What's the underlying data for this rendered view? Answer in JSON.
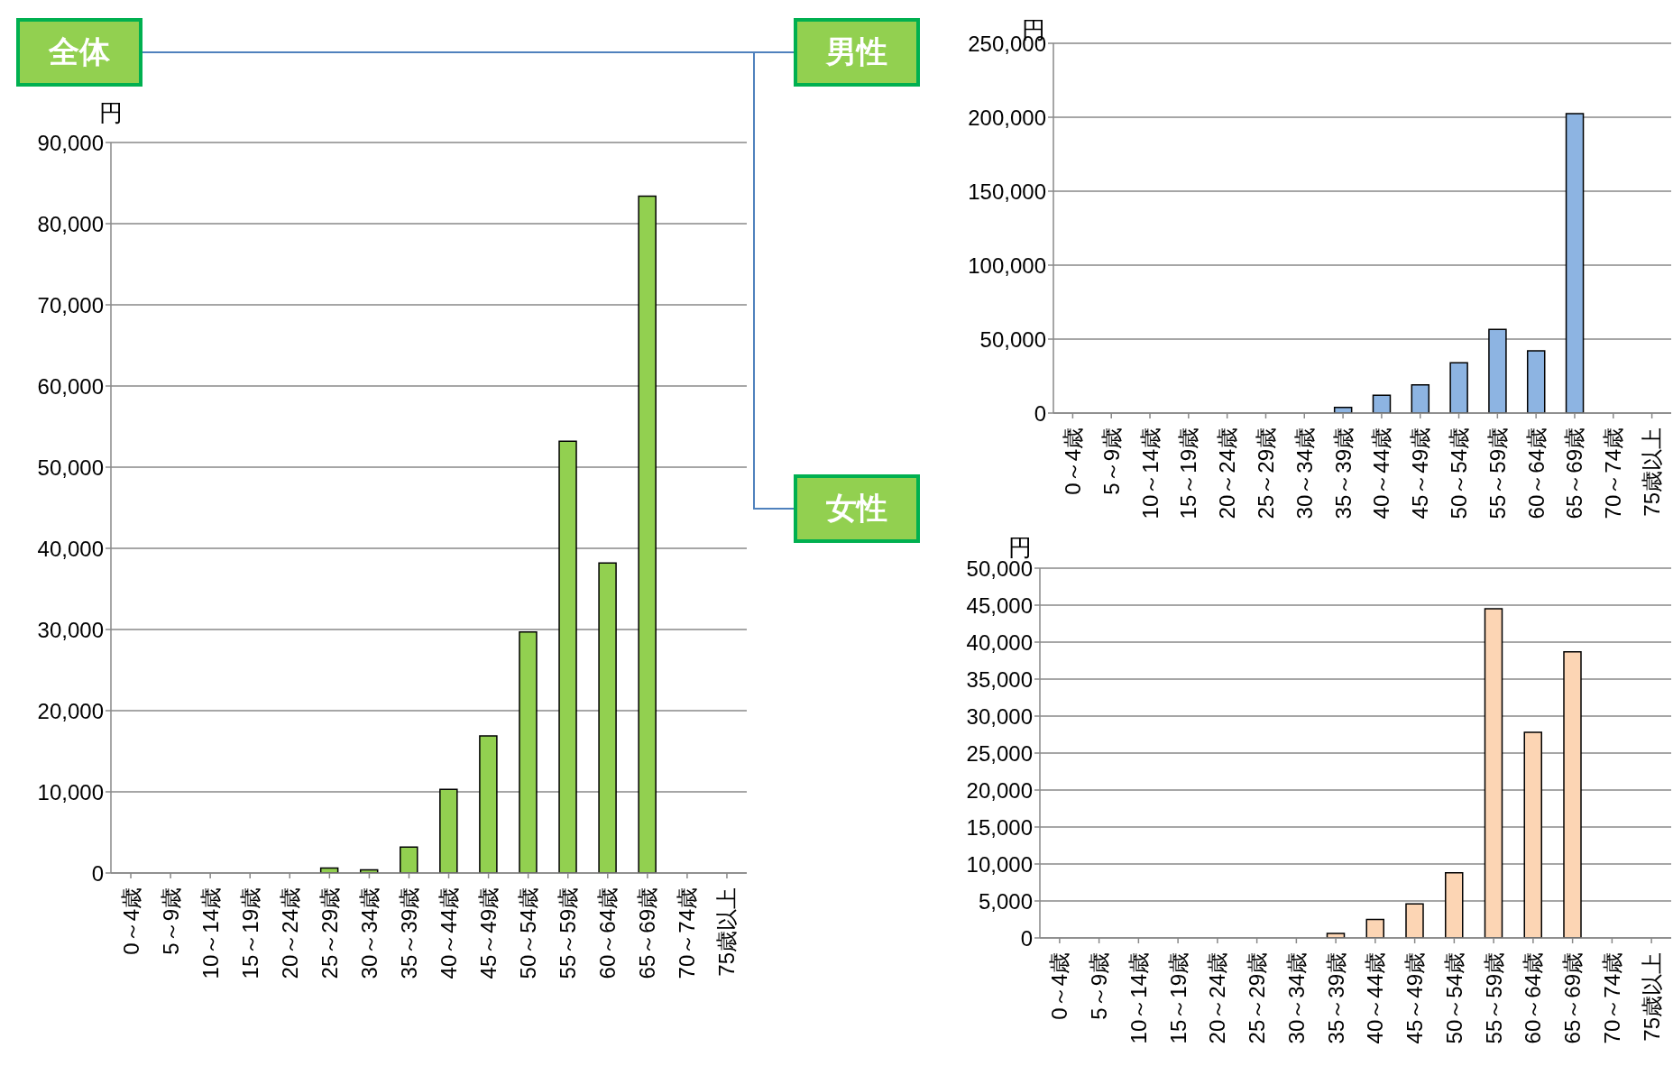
{
  "chart_data": [
    {
      "type": "bar",
      "title": "全体",
      "ylabel": "円",
      "categories": [
        "0～4歳",
        "5～9歳",
        "10～14歳",
        "15～19歳",
        "20～24歳",
        "25～29歳",
        "30～34歳",
        "35～39歳",
        "40～44歳",
        "45～49歳",
        "50～54歳",
        "55～59歳",
        "60～64歳",
        "65～69歳",
        "70～74歳",
        "75歳以上"
      ],
      "series": [
        {
          "color": "#92d050",
          "values": [
            0,
            0,
            0,
            0,
            0,
            600,
            400,
            3200,
            10300,
            16900,
            29700,
            53200,
            38200,
            83400,
            0,
            0
          ]
        }
      ],
      "ylim": [
        0,
        90000
      ],
      "yticks": [
        {
          "value": 0,
          "label": "0"
        },
        {
          "value": 10000,
          "label": "10,000"
        },
        {
          "value": 20000,
          "label": "20,000"
        },
        {
          "value": 30000,
          "label": "30,000"
        },
        {
          "value": 40000,
          "label": "40,000"
        },
        {
          "value": 50000,
          "label": "50,000"
        },
        {
          "value": 60000,
          "label": "60,000"
        },
        {
          "value": 70000,
          "label": "70,000"
        },
        {
          "value": 80000,
          "label": "80,000"
        },
        {
          "value": 90000,
          "label": "90,000"
        }
      ],
      "grid": "y",
      "legend": false
    },
    {
      "type": "bar",
      "title": "男性",
      "ylabel": "円",
      "categories": [
        "0～4歳",
        "5～9歳",
        "10～14歳",
        "15～19歳",
        "20～24歳",
        "25～29歳",
        "30～34歳",
        "35～39歳",
        "40～44歳",
        "45～49歳",
        "50～54歳",
        "55～59歳",
        "60～64歳",
        "65～69歳",
        "70～74歳",
        "75歳以上"
      ],
      "series": [
        {
          "color": "#8db4e2",
          "values": [
            0,
            0,
            0,
            0,
            0,
            null,
            null,
            3800,
            12000,
            19000,
            34000,
            56500,
            42000,
            202500,
            0,
            0
          ]
        }
      ],
      "ylim": [
        0,
        250000
      ],
      "yticks": [
        {
          "value": 0,
          "label": "0"
        },
        {
          "value": 50000,
          "label": "50,000"
        },
        {
          "value": 100000,
          "label": "100,000"
        },
        {
          "value": 150000,
          "label": "150,000"
        },
        {
          "value": 200000,
          "label": "200,000"
        },
        {
          "value": 250000,
          "label": "250,000"
        }
      ],
      "grid": "y",
      "legend": false
    },
    {
      "type": "bar",
      "title": "女性",
      "ylabel": "円",
      "categories": [
        "0～4歳",
        "5～9歳",
        "10～14歳",
        "15～19歳",
        "20～24歳",
        "25～29歳",
        "30～34歳",
        "35～39歳",
        "40～44歳",
        "45～49歳",
        "50～54歳",
        "55～59歳",
        "60～64歳",
        "65～69歳",
        "70～74歳",
        "75歳以上"
      ],
      "series": [
        {
          "color": "#fcd5b4",
          "values": [
            0,
            0,
            0,
            0,
            0,
            0,
            0,
            600,
            2500,
            4600,
            8800,
            44500,
            27800,
            38700,
            0,
            0
          ]
        }
      ],
      "ylim": [
        0,
        50000
      ],
      "yticks": [
        {
          "value": 0,
          "label": "0"
        },
        {
          "value": 5000,
          "label": "5,000"
        },
        {
          "value": 10000,
          "label": "10,000"
        },
        {
          "value": 15000,
          "label": "15,000"
        },
        {
          "value": 20000,
          "label": "20,000"
        },
        {
          "value": 25000,
          "label": "25,000"
        },
        {
          "value": 30000,
          "label": "30,000"
        },
        {
          "value": 35000,
          "label": "35,000"
        },
        {
          "value": 40000,
          "label": "40,000"
        },
        {
          "value": 45000,
          "label": "45,000"
        },
        {
          "value": 50000,
          "label": "50,000"
        }
      ],
      "grid": "y",
      "legend": false
    }
  ]
}
